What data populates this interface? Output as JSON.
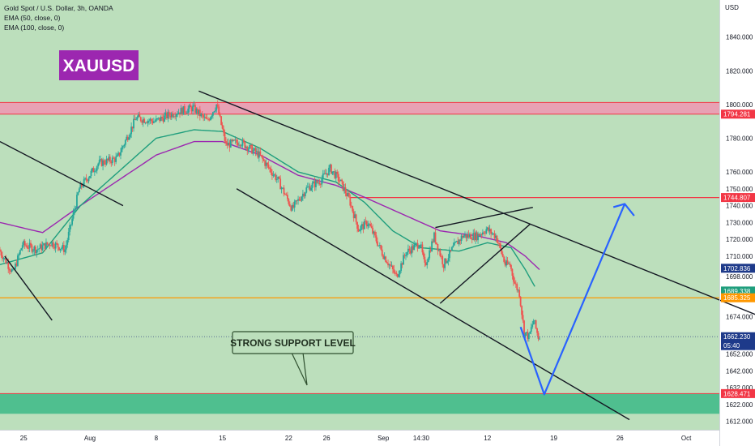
{
  "header": {
    "symbol_line": "Gold Spot / U.S. Dollar, 3h, OANDA",
    "ema1": "EMA (50, close, 0)",
    "ema2": "EMA (100, close, 0)"
  },
  "currency": "USD",
  "labels": {
    "ticker": "XAUUSD",
    "support": "STRONG SUPPORT LEVEL"
  },
  "colors": {
    "background": "#bcdfbc",
    "resistance_zone": "#e8a1b4",
    "support_zone": "#4fbf8f",
    "candle_up": "#26a69a",
    "candle_down": "#ef5350",
    "ema50": "#1f9e7d",
    "ema100": "#9c27b0",
    "projection": "#2962ff",
    "ticker_bg": "#9c27b0"
  },
  "chart_data": {
    "type": "candlestick",
    "symbol": "XAUUSD",
    "timeframe": "3h",
    "x_ticks": [
      {
        "label": "25",
        "day": 0
      },
      {
        "label": "Aug",
        "day": 7
      },
      {
        "label": "8",
        "day": 14
      },
      {
        "label": "15",
        "day": 21
      },
      {
        "label": "22",
        "day": 28
      },
      {
        "label": "26",
        "day": 32
      },
      {
        "label": "Sep",
        "day": 38
      },
      {
        "label": "14:30",
        "day": 42
      },
      {
        "label": "12",
        "day": 49
      },
      {
        "label": "19",
        "day": 56
      },
      {
        "label": "26",
        "day": 63
      },
      {
        "label": "Oct",
        "day": 70
      }
    ],
    "y_ticks": [
      1612,
      1622,
      1632,
      1642,
      1652,
      1674,
      1686,
      1698,
      1710,
      1720,
      1730,
      1740,
      1750,
      1760,
      1780,
      1800,
      1820,
      1840
    ],
    "y_tick_labels": [
      "1612.000",
      "1622.000",
      "1632.000",
      "1642.000",
      "1652.000",
      "1674.000",
      "1686.000",
      "1698.000",
      "1710.000",
      "1720.000",
      "1730.000",
      "1740.000",
      "1750.000",
      "1760.000",
      "1780.000",
      "1800.000",
      "1820.000",
      "1840.000"
    ],
    "ylim": [
      1607,
      1862
    ],
    "xlim": [
      -2.5,
      73.5
    ],
    "price_tags": [
      {
        "value": 1794.281,
        "label": "1794.281",
        "color": "#f23645"
      },
      {
        "value": 1744.807,
        "label": "1744.807",
        "color": "#f23645"
      },
      {
        "value": 1702.836,
        "label": "1702.836",
        "color": "#1e3a8a"
      },
      {
        "value": 1689.338,
        "label": "1689.338",
        "color": "#1f9e7d"
      },
      {
        "value": 1685.325,
        "label": "1685.325",
        "color": "#ff9800"
      },
      {
        "value": 1662.23,
        "label": "1662.230",
        "color": "#1e3a8a"
      },
      {
        "value": 1628.471,
        "label": "1628.471",
        "color": "#f23645"
      }
    ],
    "countdown": "05:40",
    "zones": [
      {
        "name": "resistance",
        "from": 1794.3,
        "to": 1801.2
      },
      {
        "name": "support",
        "from": 1616.5,
        "to": 1628.5
      }
    ],
    "horizontal_lines": [
      {
        "value": 1685.3,
        "color": "#ff9800",
        "from_day": -2.5
      },
      {
        "value": 1744.8,
        "color": "#f23645",
        "from_day": 34.5
      }
    ],
    "trendlines": [
      {
        "from": [
          -2.5,
          1778
        ],
        "to": [
          10.5,
          1740
        ]
      },
      {
        "from": [
          -2,
          1710
        ],
        "to": [
          3,
          1672
        ]
      },
      {
        "from": [
          18.5,
          1808
        ],
        "to": [
          77.5,
          1675
        ]
      },
      {
        "from": [
          22.5,
          1750
        ],
        "to": [
          64,
          1613
        ]
      },
      {
        "from": [
          43.5,
          1727
        ],
        "to": [
          53.8,
          1739
        ]
      },
      {
        "from": [
          44,
          1682
        ],
        "to": [
          53.5,
          1729
        ]
      }
    ],
    "projection": [
      [
        52.5,
        1668
      ],
      [
        55,
        1628
      ],
      [
        63.5,
        1741
      ],
      [
        64.5,
        1734
      ]
    ],
    "ohlc_anchors": [
      [
        -2.5,
        1714
      ],
      [
        -1,
        1700
      ],
      [
        0,
        1717
      ],
      [
        1.5,
        1714
      ],
      [
        3,
        1718
      ],
      [
        4.5,
        1714
      ],
      [
        6,
        1750
      ],
      [
        8,
        1765
      ],
      [
        10,
        1768
      ],
      [
        12,
        1792
      ],
      [
        14,
        1790
      ],
      [
        16,
        1795
      ],
      [
        18,
        1798
      ],
      [
        19.5,
        1790
      ],
      [
        20.5,
        1800
      ],
      [
        21.5,
        1776
      ],
      [
        23,
        1778
      ],
      [
        25,
        1770
      ],
      [
        27,
        1755
      ],
      [
        28.5,
        1738
      ],
      [
        30,
        1750
      ],
      [
        31.5,
        1755
      ],
      [
        32.5,
        1762
      ],
      [
        33.5,
        1755
      ],
      [
        34.5,
        1744
      ],
      [
        35.5,
        1726
      ],
      [
        36.5,
        1730
      ],
      [
        38,
        1712
      ],
      [
        39.5,
        1698
      ],
      [
        40.5,
        1712
      ],
      [
        42,
        1718
      ],
      [
        42.5,
        1704
      ],
      [
        43.5,
        1722
      ],
      [
        44.5,
        1705
      ],
      [
        45.5,
        1715
      ],
      [
        46.5,
        1722
      ],
      [
        48,
        1722
      ],
      [
        49,
        1726
      ],
      [
        50,
        1722
      ],
      [
        50.5,
        1714
      ],
      [
        51,
        1705
      ],
      [
        51.5,
        1705
      ],
      [
        52,
        1694
      ],
      [
        52.5,
        1688
      ],
      [
        53,
        1665
      ],
      [
        53.5,
        1662
      ],
      [
        54,
        1672
      ],
      [
        54.5,
        1662
      ]
    ],
    "ema50_points": [
      [
        -2.5,
        1705
      ],
      [
        2,
        1712
      ],
      [
        6,
        1740
      ],
      [
        10,
        1760
      ],
      [
        14,
        1780
      ],
      [
        18,
        1785
      ],
      [
        21,
        1784
      ],
      [
        25,
        1774
      ],
      [
        29,
        1760
      ],
      [
        33,
        1754
      ],
      [
        36,
        1742
      ],
      [
        39,
        1725
      ],
      [
        42,
        1715
      ],
      [
        46,
        1713
      ],
      [
        49,
        1718
      ],
      [
        51.5,
        1715
      ],
      [
        53,
        1702
      ],
      [
        54.2,
        1690
      ]
    ],
    "ema100_points": [
      [
        -2.5,
        1730
      ],
      [
        2,
        1724
      ],
      [
        6,
        1740
      ],
      [
        10,
        1755
      ],
      [
        14,
        1770
      ],
      [
        18,
        1778
      ],
      [
        21,
        1778
      ],
      [
        25,
        1770
      ],
      [
        29,
        1758
      ],
      [
        33,
        1752
      ],
      [
        36,
        1745
      ],
      [
        40,
        1735
      ],
      [
        44,
        1725
      ],
      [
        48,
        1722
      ],
      [
        51,
        1718
      ],
      [
        53,
        1710
      ],
      [
        54.5,
        1702
      ]
    ]
  }
}
